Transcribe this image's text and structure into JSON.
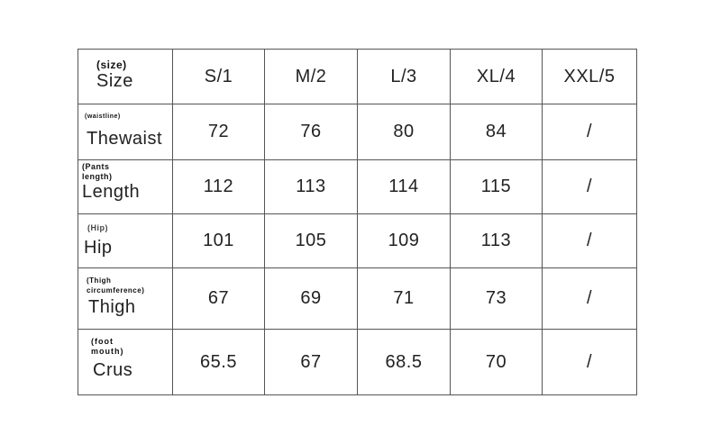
{
  "headers": {
    "sub": "(size)",
    "label": "Size",
    "sizes": [
      "S/1",
      "M/2",
      "L/3",
      "XL/4",
      "XXL/5"
    ]
  },
  "rows": [
    {
      "sub": "(waistline)",
      "label": "Thewaist",
      "values": [
        "72",
        "76",
        "80",
        "84",
        "/"
      ]
    },
    {
      "sub": "(Pants length)",
      "label": "Length",
      "values": [
        "112",
        "113",
        "114",
        "115",
        "/"
      ]
    },
    {
      "sub": "(Hip)",
      "label": "Hip",
      "values": [
        "101",
        "105",
        "109",
        "113",
        "/"
      ]
    },
    {
      "sub": "(Thigh circumference)",
      "label": "Thigh",
      "values": [
        "67",
        "69",
        "71",
        "73",
        "/"
      ]
    },
    {
      "sub": "(foot mouth)",
      "label": "Crus",
      "values": [
        "65.5",
        "67",
        "68.5",
        "70",
        "/"
      ]
    }
  ]
}
